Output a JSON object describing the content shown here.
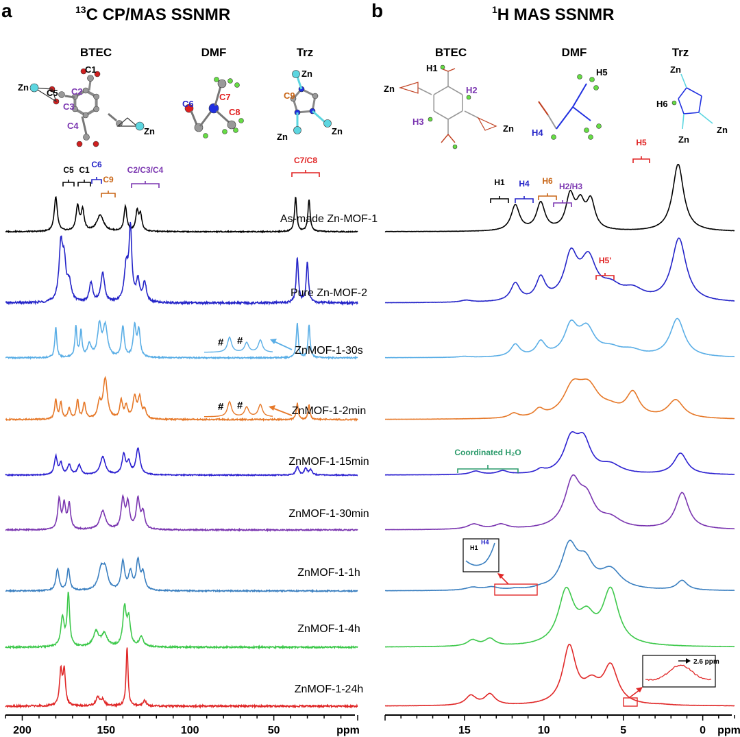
{
  "panels": {
    "a": {
      "letter": "a",
      "title_sup": "13",
      "title_rest": "C CP/MAS SSNMR"
    },
    "b": {
      "letter": "b",
      "title_sup": "1",
      "title_rest": "H MAS SSNMR"
    }
  },
  "molecules": {
    "a": [
      {
        "name": "BTEC",
        "atoms": [
          "C1",
          "C2",
          "C3",
          "C4",
          "C5",
          "Zn",
          "Zn"
        ]
      },
      {
        "name": "DMF",
        "atoms": [
          "C6",
          "C7",
          "C8"
        ]
      },
      {
        "name": "Trz",
        "atoms": [
          "Zn",
          "C9",
          "Zn",
          "Zn"
        ]
      }
    ],
    "b": [
      {
        "name": "BTEC",
        "atoms": [
          "H1",
          "H2",
          "H3",
          "Zn",
          "Zn"
        ]
      },
      {
        "name": "DMF",
        "atoms": [
          "H5",
          "H4"
        ]
      },
      {
        "name": "Trz",
        "atoms": [
          "Zn",
          "H6",
          "Zn",
          "Zn"
        ]
      }
    ]
  },
  "colors": {
    "as_made": "#000000",
    "pure_mof2": "#2323c8",
    "s30": "#5aaee6",
    "m2": "#e67828",
    "m15": "#2a1fd0",
    "m30": "#7a35b0",
    "h1": "#3a7fc0",
    "h4": "#3cc84a",
    "h24": "#e02828",
    "black_label": "#000000",
    "blue_label": "#2323c8",
    "orange_label": "#c86414",
    "purple_label": "#7a35b0",
    "red_label": "#e02020",
    "green_label": "#2a9a6a"
  },
  "chart_data": [
    {
      "type": "line",
      "panel": "a",
      "title": "13C CP/MAS SSNMR",
      "xlabel": "ppm",
      "xlim": [
        210,
        0
      ],
      "x_reversed": true,
      "x_ticks": [
        200,
        150,
        100,
        50
      ],
      "y_axis_shown": false,
      "peak_labels": [
        {
          "label": "C5",
          "ppm": 180,
          "color": "black"
        },
        {
          "label": "C1",
          "ppm": 170,
          "color": "black"
        },
        {
          "label": "C6",
          "ppm": 164,
          "color": "blue"
        },
        {
          "label": "C9",
          "ppm": 154,
          "color": "orange"
        },
        {
          "label": "C2/C3/C4",
          "ppm": 134,
          "color": "purple"
        },
        {
          "label": "C7/C8",
          "ppm": 32,
          "color": "red"
        }
      ],
      "series": [
        {
          "name": "As-made Zn-MOF-1",
          "color_key": "as_made",
          "peaks": [
            [
              180,
              1.0,
              1.1
            ],
            [
              167,
              0.72,
              1.1
            ],
            [
              164,
              0.6,
              1.1
            ],
            [
              153.5,
              0.48,
              2.4
            ],
            [
              138.5,
              0.72,
              1.0
            ],
            [
              131.5,
              0.56,
              1.0
            ],
            [
              129.5,
              0.46,
              1.0
            ],
            [
              37,
              1.0,
              0.8
            ],
            [
              29,
              0.92,
              0.8
            ]
          ]
        },
        {
          "name": "Pure Zn-MOF-2",
          "color_key": "pure_mof2",
          "peaks": [
            [
              177,
              0.78,
              1.3
            ],
            [
              175,
              0.5,
              1.3
            ],
            [
              172,
              0.25,
              1.5
            ],
            [
              159,
              0.28,
              1.2
            ],
            [
              152,
              0.42,
              1.3
            ],
            [
              138,
              0.5,
              1.4
            ],
            [
              135.5,
              1.0,
              1.0
            ],
            [
              131,
              0.3,
              1.2
            ],
            [
              127,
              0.28,
              1.2
            ],
            [
              36,
              0.64,
              0.8
            ],
            [
              30,
              0.58,
              0.8
            ]
          ]
        },
        {
          "name": "ZnMOF-1-30s",
          "color_key": "s30",
          "peaks": [
            [
              180,
              0.72,
              0.7
            ],
            [
              168,
              0.72,
              0.7
            ],
            [
              165,
              0.62,
              0.7
            ],
            [
              160,
              0.3,
              1.4
            ],
            [
              154,
              0.72,
              1.3
            ],
            [
              150.5,
              0.72,
              1.6
            ],
            [
              140,
              0.72,
              1.0
            ],
            [
              133,
              0.72,
              1.0
            ],
            [
              130.5,
              0.62,
              1.0
            ],
            [
              36,
              0.82,
              0.7
            ],
            [
              29,
              0.78,
              0.7
            ]
          ]
        },
        {
          "name": "ZnMOF-1-2min",
          "color_key": "m2",
          "peaks": [
            [
              180,
              0.45,
              0.8
            ],
            [
              177,
              0.38,
              0.8
            ],
            [
              172,
              0.24,
              1.0
            ],
            [
              167,
              0.45,
              0.8
            ],
            [
              163,
              0.38,
              0.9
            ],
            [
              154,
              0.35,
              1.2
            ],
            [
              150.5,
              0.95,
              1.5
            ],
            [
              141,
              0.42,
              1.0
            ],
            [
              138,
              0.3,
              1.0
            ],
            [
              133,
              0.5,
              1.2
            ],
            [
              130,
              0.48,
              1.2
            ],
            [
              127,
              0.2,
              1.0
            ],
            [
              36,
              0.38,
              0.7
            ],
            [
              29,
              0.34,
              0.7
            ]
          ]
        },
        {
          "name": "ZnMOF-1-15min",
          "color_key": "m15",
          "peaks": [
            [
              180,
              0.55,
              1.0
            ],
            [
              177,
              0.35,
              1.0
            ],
            [
              172,
              0.3,
              1.2
            ],
            [
              166,
              0.3,
              1.2
            ],
            [
              152,
              0.55,
              1.8
            ],
            [
              139.5,
              0.6,
              1.2
            ],
            [
              136.5,
              0.35,
              1.2
            ],
            [
              131,
              0.8,
              1.4
            ],
            [
              36,
              0.26,
              1.0
            ],
            [
              31,
              0.2,
              1.0
            ],
            [
              28,
              0.16,
              1.0
            ]
          ]
        },
        {
          "name": "ZnMOF-1-30min",
          "color_key": "m30",
          "peaks": [
            [
              178,
              0.72,
              1.0
            ],
            [
              175,
              0.6,
              1.0
            ],
            [
              172,
              0.6,
              1.0
            ],
            [
              152,
              0.45,
              2.0
            ],
            [
              140,
              0.72,
              1.2
            ],
            [
              137,
              0.62,
              1.2
            ],
            [
              131,
              0.72,
              1.2
            ],
            [
              128,
              0.4,
              1.2
            ]
          ]
        },
        {
          "name": "ZnMOF-1-1h",
          "color_key": "h1",
          "peaks": [
            [
              179,
              0.55,
              1.1
            ],
            [
              172.5,
              0.55,
              1.0
            ],
            [
              153,
              0.5,
              2.0
            ],
            [
              150.5,
              0.45,
              1.8
            ],
            [
              140,
              0.72,
              1.2
            ],
            [
              135.5,
              0.45,
              1.3
            ],
            [
              131,
              0.72,
              1.2
            ],
            [
              128,
              0.42,
              1.3
            ]
          ]
        },
        {
          "name": "ZnMOF-1-4h",
          "color_key": "h4",
          "peaks": [
            [
              176,
              0.55,
              1.2
            ],
            [
              172.5,
              1.0,
              0.9
            ],
            [
              156,
              0.28,
              2.0
            ],
            [
              151,
              0.24,
              2.0
            ],
            [
              139,
              0.72,
              1.2
            ],
            [
              136.5,
              0.5,
              1.2
            ],
            [
              129,
              0.18,
              1.5
            ]
          ]
        },
        {
          "name": "ZnMOF-1-24h",
          "color_key": "h24",
          "peaks": [
            [
              177,
              0.58,
              0.9
            ],
            [
              175,
              0.58,
              0.9
            ],
            [
              155,
              0.14,
              1.4
            ],
            [
              152,
              0.1,
              1.4
            ],
            [
              137.5,
              1.0,
              0.7
            ],
            [
              127,
              0.1,
              1.0
            ]
          ]
        }
      ]
    },
    {
      "type": "line",
      "panel": "b",
      "title": "1H MAS SSNMR",
      "xlabel": "ppm",
      "xlim": [
        20,
        -2
      ],
      "x_reversed": true,
      "x_ticks": [
        15,
        10,
        5,
        0
      ],
      "y_axis_shown": false,
      "peak_labels": [
        {
          "label": "H1",
          "ppm": 11.8,
          "color": "black"
        },
        {
          "label": "H4",
          "ppm": 10.2,
          "color": "blue"
        },
        {
          "label": "H6",
          "ppm": 8.4,
          "color": "orange"
        },
        {
          "label": "H2/H3",
          "ppm": 7.2,
          "color": "purple"
        },
        {
          "label": "H5",
          "ppm": 1.5,
          "color": "red"
        },
        {
          "label": "H5'",
          "ppm": 4.5,
          "color": "red"
        }
      ],
      "annotations": [
        "Coordinated H2O",
        "2.6 ppm",
        "H1",
        "H4"
      ],
      "series": [
        {
          "name": "As-made Zn-MOF-1",
          "color_key": "as_made",
          "peaks": [
            [
              11.8,
              0.38,
              0.32
            ],
            [
              10.2,
              0.41,
              0.32
            ],
            [
              8.35,
              0.5,
              0.32
            ],
            [
              7.7,
              0.36,
              0.32
            ],
            [
              7.05,
              0.42,
              0.32
            ],
            [
              1.55,
              1.0,
              0.42
            ]
          ]
        },
        {
          "name": "Pure Zn-MOF-2",
          "color_key": "pure_mof2",
          "peaks": [
            [
              14.9,
              0.03,
              0.4
            ],
            [
              11.8,
              0.28,
              0.35
            ],
            [
              10.2,
              0.35,
              0.35
            ],
            [
              8.3,
              0.68,
              0.5
            ],
            [
              7.2,
              0.62,
              0.6
            ],
            [
              5.8,
              0.2,
              0.8
            ],
            [
              4.4,
              0.16,
              0.8
            ],
            [
              1.5,
              1.0,
              0.55
            ]
          ]
        },
        {
          "name": "ZnMOF-1-30s",
          "color_key": "s30",
          "peaks": [
            [
              15,
              0.02,
              0.4
            ],
            [
              11.8,
              0.26,
              0.35
            ],
            [
              10.2,
              0.3,
              0.35
            ],
            [
              8.3,
              0.62,
              0.5
            ],
            [
              7.3,
              0.56,
              0.6
            ],
            [
              5.8,
              0.15,
              0.8
            ],
            [
              4.5,
              0.12,
              0.8
            ],
            [
              1.6,
              0.82,
              0.55
            ]
          ]
        },
        {
          "name": "ZnMOF-1-2min",
          "color_key": "m2",
          "peaks": [
            [
              11.9,
              0.1,
              0.35
            ],
            [
              10.3,
              0.16,
              0.35
            ],
            [
              8.2,
              0.6,
              0.7
            ],
            [
              7.2,
              0.62,
              0.8
            ],
            [
              5.8,
              0.15,
              0.8
            ],
            [
              4.4,
              0.52,
              0.5
            ],
            [
              1.7,
              0.4,
              0.6
            ]
          ]
        },
        {
          "name": "ZnMOF-1-15min",
          "color_key": "m15",
          "peaks": [
            [
              14.3,
              0.08,
              0.4
            ],
            [
              12.6,
              0.08,
              0.4
            ],
            [
              10.2,
              0.08,
              0.3
            ],
            [
              8.3,
              0.75,
              0.55
            ],
            [
              7.5,
              0.7,
              0.55
            ],
            [
              5.8,
              0.2,
              0.8
            ],
            [
              1.4,
              0.5,
              0.5
            ]
          ]
        },
        {
          "name": "ZnMOF-1-30min",
          "color_key": "m30",
          "peaks": [
            [
              14.4,
              0.1,
              0.5
            ],
            [
              12.7,
              0.09,
              0.5
            ],
            [
              8.2,
              0.9,
              0.6
            ],
            [
              7.3,
              0.5,
              0.6
            ],
            [
              5.8,
              0.18,
              0.8
            ],
            [
              1.3,
              0.72,
              0.5
            ]
          ]
        },
        {
          "name": "ZnMOF-1-1h",
          "color_key": "h1",
          "peaks": [
            [
              14.5,
              0.06,
              0.5
            ],
            [
              13.3,
              0.06,
              0.5
            ],
            [
              11.8,
              0.02,
              0.35
            ],
            [
              10.2,
              0.02,
              0.35
            ],
            [
              8.4,
              0.88,
              0.6
            ],
            [
              7.4,
              0.5,
              0.6
            ],
            [
              5.8,
              0.4,
              0.8
            ],
            [
              1.3,
              0.2,
              0.4
            ]
          ]
        },
        {
          "name": "ZnMOF-1-4h",
          "color_key": "h4",
          "peaks": [
            [
              14.5,
              0.1,
              0.4
            ],
            [
              13.4,
              0.12,
              0.4
            ],
            [
              8.6,
              0.88,
              0.6
            ],
            [
              7.3,
              0.4,
              0.6
            ],
            [
              5.8,
              0.9,
              0.6
            ]
          ]
        },
        {
          "name": "ZnMOF-1-24h",
          "color_key": "h24",
          "peaks": [
            [
              14.6,
              0.16,
              0.4
            ],
            [
              13.4,
              0.18,
              0.4
            ],
            [
              8.4,
              0.95,
              0.5
            ],
            [
              7.0,
              0.3,
              0.6
            ],
            [
              5.8,
              0.62,
              0.55
            ],
            [
              2.6,
              0.01,
              0.5
            ]
          ]
        }
      ]
    }
  ]
}
